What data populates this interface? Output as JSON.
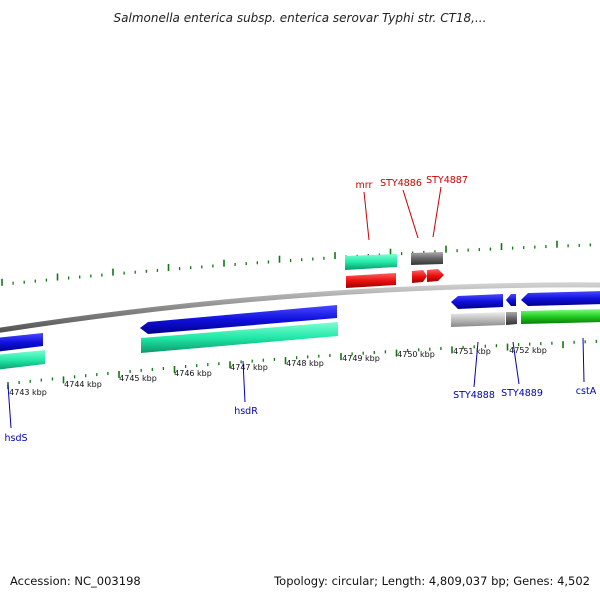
{
  "title": "Salmonella enterica subsp. enterica serovar Typhi str. CT18,...",
  "accession_label": "Accession: NC_003198",
  "summary_label": "Topology: circular; Length: 4,809,037 bp; Genes: 4,502",
  "colors": {
    "backbone": "#8a8a8a",
    "tick": "#117711",
    "cds_blue": "#1010dd",
    "gene_teal": "#22e8a8",
    "gene_red": "#ee1111",
    "gene_gray": "#666666",
    "gene_lightgray": "#bbbbbb",
    "gene_green": "#22cc22",
    "label_blue": "#0000bb",
    "label_red": "#cc0000"
  },
  "ticks": [
    {
      "label": "4743 kbp"
    },
    {
      "label": "4744 kbp"
    },
    {
      "label": "4745 kbp"
    },
    {
      "label": "4746 kbp"
    },
    {
      "label": "4747 kbp"
    },
    {
      "label": "4748 kbp"
    },
    {
      "label": "4749 kbp"
    },
    {
      "label": "4750 kbp"
    },
    {
      "label": "4751 kbp"
    },
    {
      "label": "4752 kbp"
    }
  ],
  "gene_labels": {
    "mrr": "mrr",
    "sty4886": "STY4886",
    "sty4887": "STY4887",
    "hsds": "hsdS",
    "hsdr": "hsdR",
    "sty4888": "STY4888",
    "sty4889": "STY4889",
    "csta": "cstA"
  }
}
